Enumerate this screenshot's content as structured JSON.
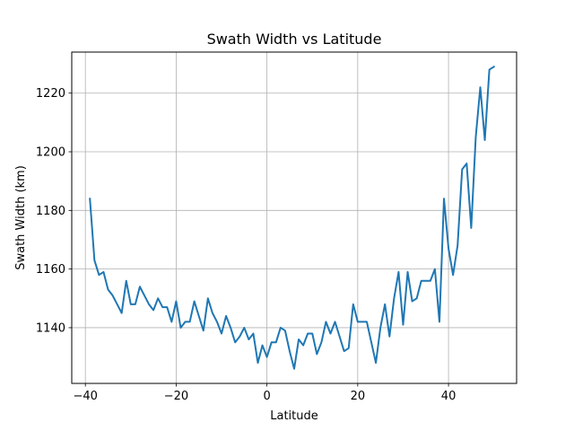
{
  "chart_data": {
    "type": "line",
    "title": "Swath Width vs Latitude",
    "xlabel": "Latitude",
    "ylabel": "Swath Width (km)",
    "xlim": [
      -43,
      55
    ],
    "ylim": [
      1121,
      1234
    ],
    "xticks": [
      -40,
      -20,
      0,
      20,
      40
    ],
    "xtick_labels": [
      "−40",
      "−20",
      "0",
      "20",
      "40"
    ],
    "yticks": [
      1140,
      1160,
      1180,
      1200,
      1220
    ],
    "ytick_labels": [
      "1140",
      "1160",
      "1180",
      "1200",
      "1220"
    ],
    "grid": true,
    "legend": "none",
    "line_color": "#1f77b4",
    "series": [
      {
        "x": [
          -39,
          -38,
          -37,
          -36,
          -35,
          -34,
          -33,
          -32,
          -31,
          -30,
          -29,
          -28,
          -27,
          -26,
          -25,
          -24,
          -23,
          -22,
          -21,
          -20,
          -19,
          -18,
          -17,
          -16,
          -15,
          -14,
          -13,
          -12,
          -11,
          -10,
          -9,
          -8,
          -7,
          -6,
          -5,
          -4,
          -3,
          -2,
          -1,
          0,
          1,
          2,
          3,
          4,
          5,
          6,
          7,
          8,
          9,
          10,
          11,
          12,
          13,
          14,
          15,
          16,
          17,
          18,
          19,
          20,
          21,
          22,
          23,
          24,
          25,
          26,
          27,
          28,
          29,
          30,
          31,
          32,
          33,
          34,
          35,
          36,
          37,
          38,
          39,
          40,
          41,
          42,
          43,
          44,
          45,
          46,
          47,
          48,
          49,
          50
        ],
        "y": [
          1184,
          1163,
          1158,
          1159,
          1153,
          1151,
          1148,
          1145,
          1156,
          1148,
          1148,
          1154,
          1151,
          1148,
          1146,
          1150,
          1147,
          1147,
          1142,
          1149,
          1140,
          1142,
          1142,
          1149,
          1144,
          1139,
          1150,
          1145,
          1142,
          1138,
          1144,
          1140,
          1135,
          1137,
          1140,
          1136,
          1138,
          1128,
          1134,
          1130,
          1135,
          1135,
          1140,
          1139,
          1132,
          1126,
          1136,
          1134,
          1138,
          1138,
          1131,
          1135,
          1142,
          1138,
          1142,
          1137,
          1132,
          1133,
          1148,
          1142,
          1142,
          1142,
          1135,
          1128,
          1140,
          1148,
          1137,
          1150,
          1159,
          1141,
          1159,
          1149,
          1150,
          1156,
          1156,
          1156,
          1160,
          1142,
          1184,
          1167,
          1158,
          1168,
          1194,
          1196,
          1174,
          1205,
          1222,
          1204,
          1228,
          1229
        ]
      }
    ]
  }
}
